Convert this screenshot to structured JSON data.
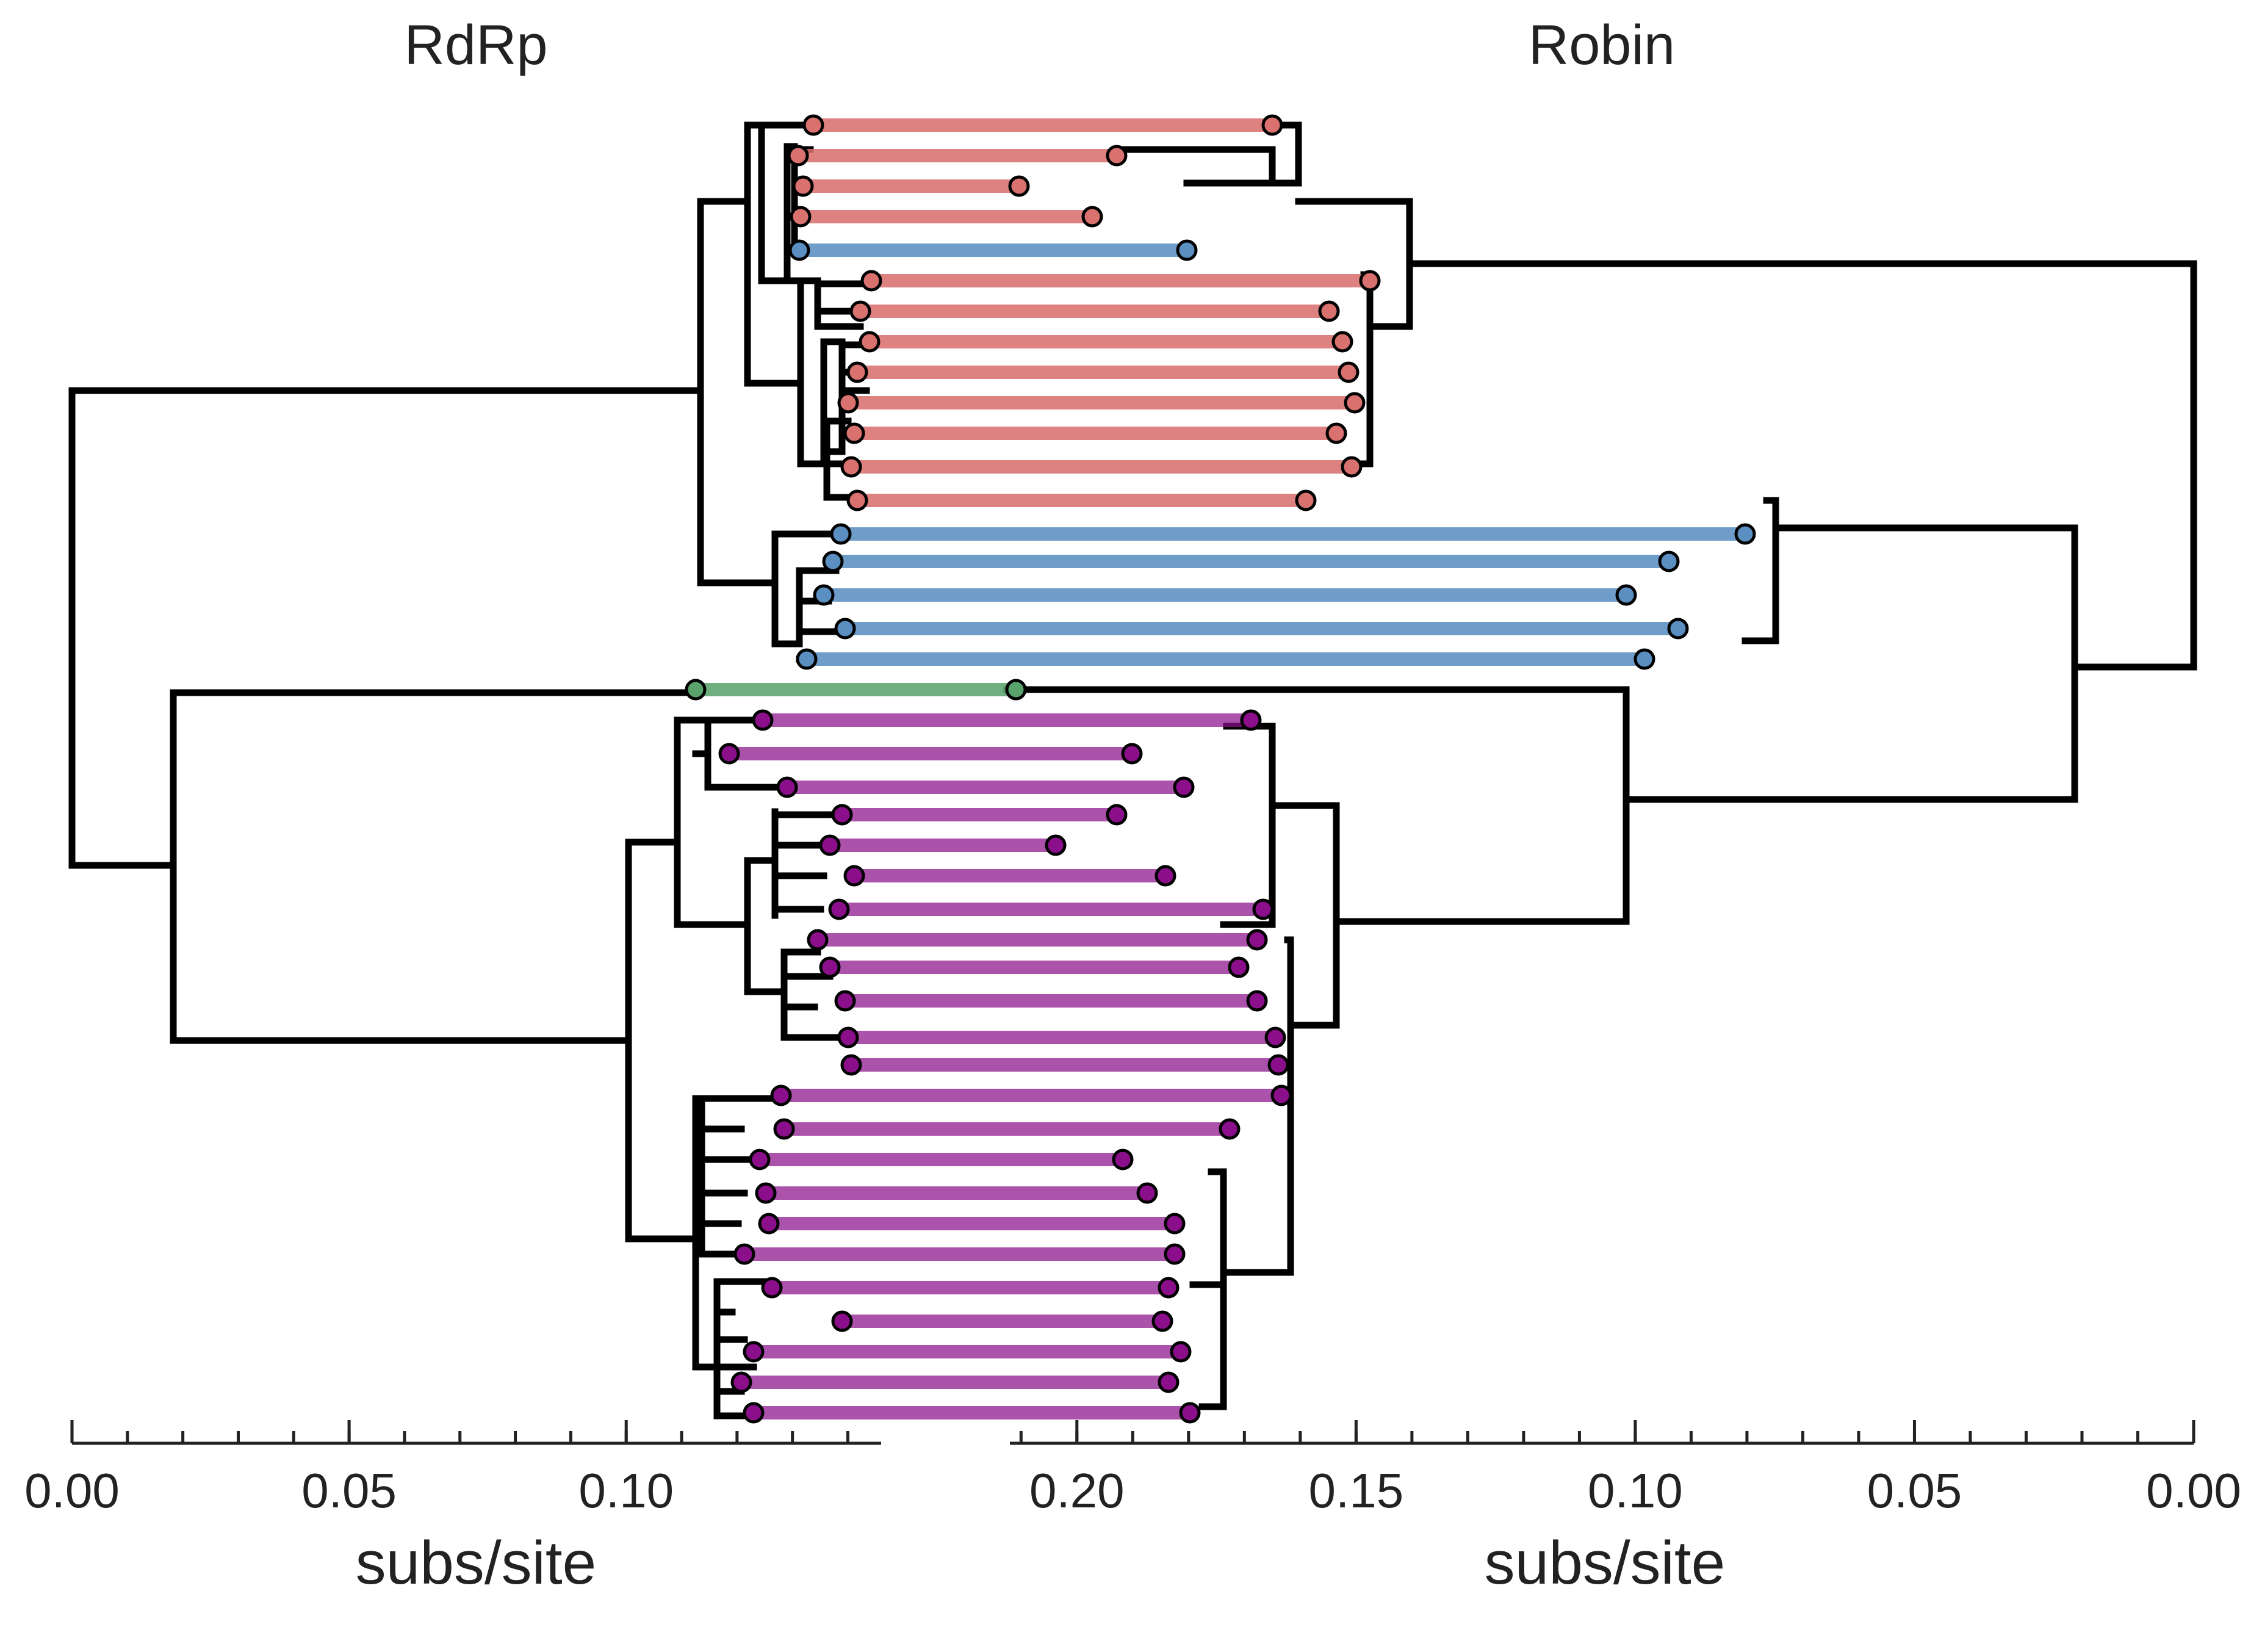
{
  "panels": {
    "left": {
      "title": "RdRp",
      "axis_label": "subs/site",
      "axis_range": [
        0,
        0.146
      ],
      "major_ticks": [
        0.0,
        0.05,
        0.1
      ],
      "tick_labels": [
        "0.00",
        "0.05",
        "0.10"
      ],
      "minor_tick_step": 0.01
    },
    "right": {
      "title": "Robin",
      "axis_label": "subs/site",
      "axis_range": [
        0.212,
        0.0
      ],
      "major_ticks": [
        0.2,
        0.15,
        0.1,
        0.05,
        0.0
      ],
      "tick_labels": [
        "0.20",
        "0.15",
        "0.10",
        "0.05",
        "0.00"
      ],
      "minor_tick_step": 0.01
    }
  },
  "colors": {
    "tree": "#000000",
    "axis": "#222222",
    "red_clade": "#d9716f",
    "blue_clade": "#5b8fc2",
    "green_clade": "#5aa36d",
    "purple_clade": "#8b0f8b",
    "tip_outline": "#000000"
  },
  "clades": {
    "red": {
      "left_tips": 13,
      "right_tips": 13
    },
    "blue": {
      "left_tips": 6,
      "right_tips": 6
    },
    "green": {
      "left_tips": 1,
      "right_tips": 1
    },
    "purple": {
      "left_tips": 22,
      "right_tips": 22
    }
  }
}
